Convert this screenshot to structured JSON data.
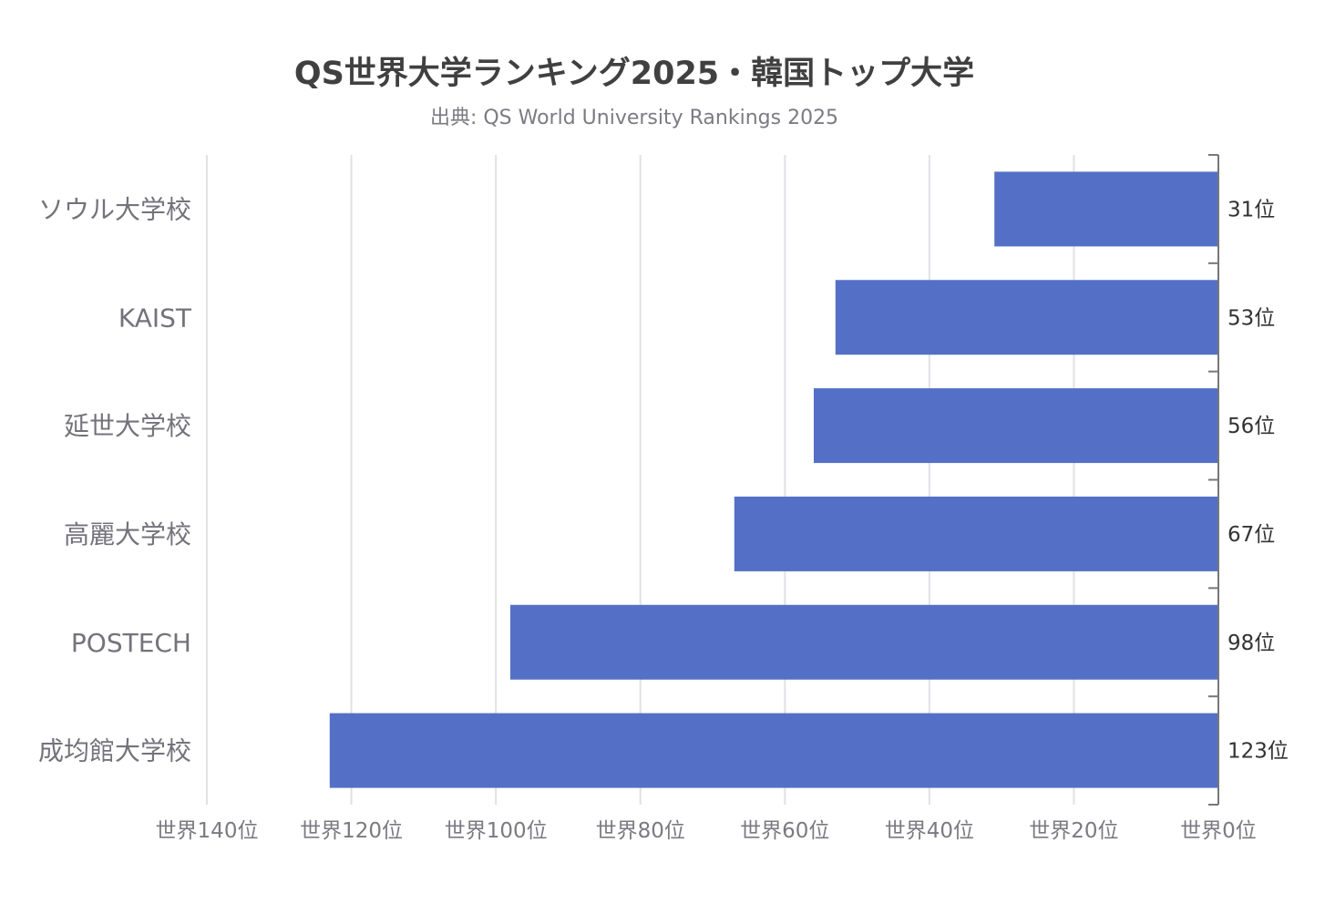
{
  "chart_data": {
    "type": "bar",
    "orientation": "horizontal",
    "title": "QS世界大学ランキング2025・韓国トップ大学",
    "subtitle": "出典: QS World University Rankings 2025",
    "categories": [
      "ソウル大学校",
      "KAIST",
      "延世大学校",
      "高麗大学校",
      "POSTECH",
      "成均館大学校"
    ],
    "values": [
      31,
      53,
      56,
      67,
      98,
      123
    ],
    "data_labels": [
      "31位",
      "53位",
      "56位",
      "67位",
      "98位",
      "123位"
    ],
    "x_ticks": [
      140,
      120,
      100,
      80,
      60,
      40,
      20,
      0
    ],
    "x_tick_labels": [
      "世界140位",
      "世界120位",
      "世界100位",
      "世界80位",
      "世界60位",
      "世界40位",
      "世界20位",
      "世界0位"
    ],
    "xlim": [
      140,
      0
    ],
    "x_reversed": true,
    "grid": true,
    "legend": "none",
    "bar_color": "#5470c6"
  }
}
